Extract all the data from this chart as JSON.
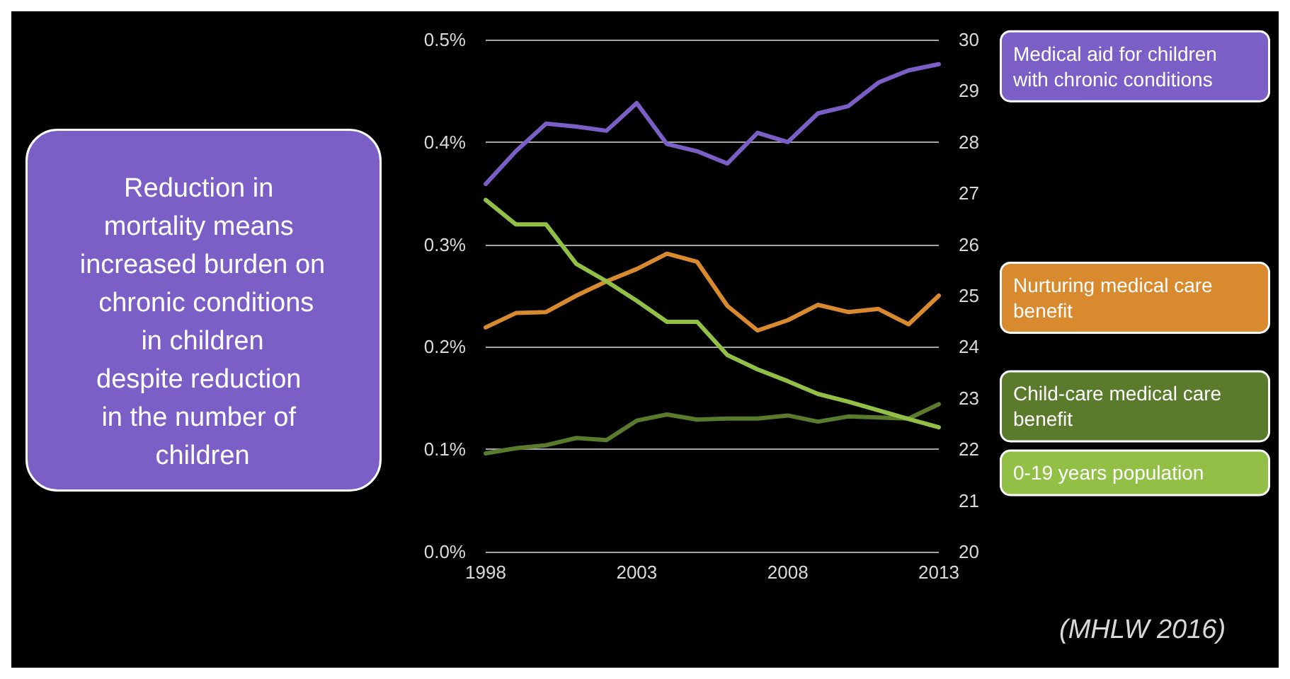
{
  "chart_data": {
    "type": "line",
    "x": [
      1998,
      1999,
      2000,
      2001,
      2002,
      2003,
      2004,
      2005,
      2006,
      2007,
      2008,
      2009,
      2010,
      2011,
      2012,
      2013
    ],
    "series": [
      {
        "name": "Medical aid for children\nwith chronic conditions",
        "color": "#7b5fc7",
        "values": [
          0.359,
          0.391,
          0.418,
          0.415,
          0.411,
          0.438,
          0.398,
          0.391,
          0.379,
          0.409,
          0.4,
          0.428,
          0.435,
          0.458,
          0.47,
          0.476
        ]
      },
      {
        "name": "Nurturing medical care benefit",
        "color": "#d98a2e",
        "values": [
          0.219,
          0.233,
          0.234,
          0.25,
          0.264,
          0.276,
          0.291,
          0.283,
          0.24,
          0.216,
          0.226,
          0.241,
          0.234,
          0.237,
          0.222,
          0.25
        ]
      },
      {
        "name": "Child-care medical care benefit",
        "color": "#5a7a2c",
        "values": [
          0.096,
          0.101,
          0.104,
          0.111,
          0.109,
          0.128,
          0.134,
          0.129,
          0.13,
          0.13,
          0.133,
          0.127,
          0.132,
          0.131,
          0.13,
          0.144
        ]
      },
      {
        "name": "0-19 years population",
        "color": "#92c047",
        "axis": "y2",
        "values": [
          26.87,
          26.39,
          26.39,
          25.62,
          25.28,
          24.9,
          24.49,
          24.49,
          23.84,
          23.56,
          23.33,
          23.08,
          22.93,
          22.76,
          22.59,
          22.43
        ]
      }
    ],
    "xlim": [
      1998,
      2013
    ],
    "xticks": [
      1998,
      2003,
      2008,
      2013
    ],
    "ylim": [
      0,
      0.5
    ],
    "yticks": [
      {
        "value": 0,
        "label": "0.0%"
      },
      {
        "value": 0.1,
        "label": "0.1%"
      },
      {
        "value": 0.2,
        "label": "0.2%"
      },
      {
        "value": 0.3,
        "label": "0.3%"
      },
      {
        "value": 0.4,
        "label": "0.4%"
      },
      {
        "value": 0.5,
        "label": "0.5%"
      }
    ],
    "y2lim": [
      20,
      30
    ],
    "y2ticks": [
      20,
      21,
      22,
      23,
      24,
      25,
      26,
      27,
      28,
      29,
      30
    ],
    "grid": "y",
    "marker": "none",
    "line_style": "solid",
    "annotations": [
      "Reduction in mortality means increased burden on chronic conditions in children despite reduction in the number of children",
      "(MHLW 2016)"
    ]
  }
}
